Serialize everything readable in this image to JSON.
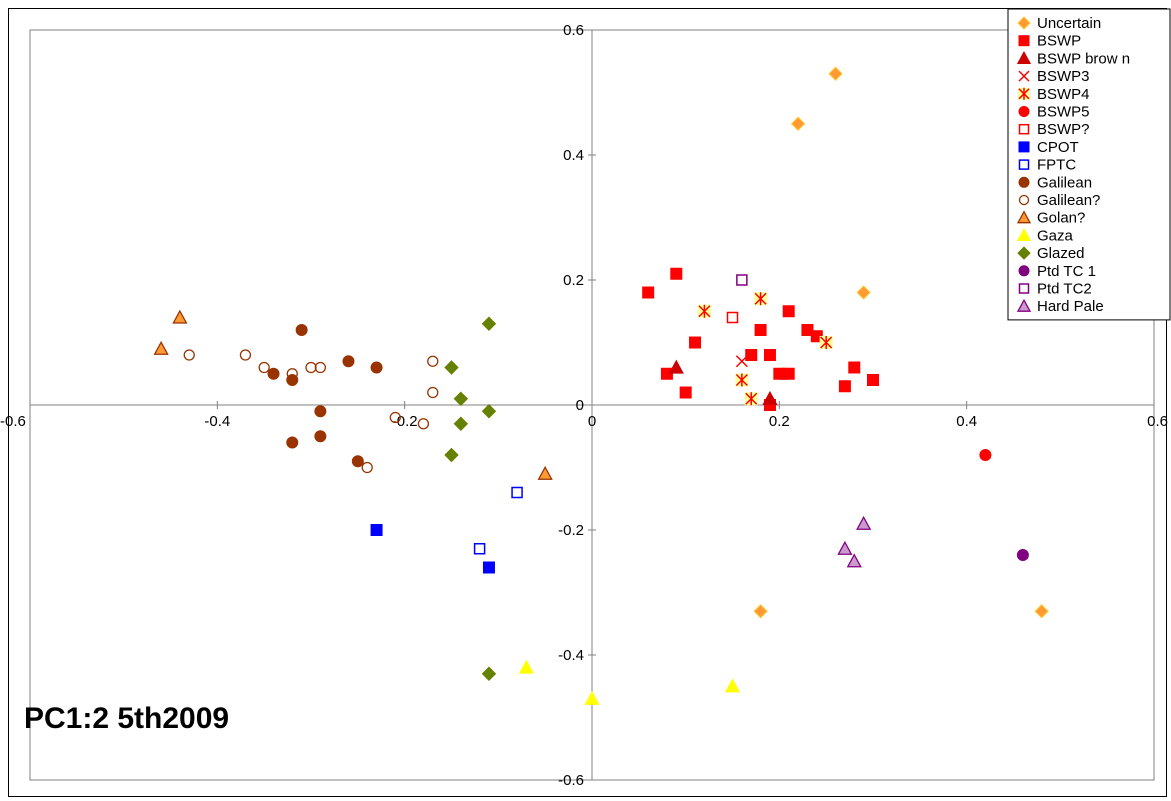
{
  "chart_data": {
    "type": "scatter",
    "title": "PC1:2 5th2009",
    "xlabel": "",
    "ylabel": "",
    "xlim": [
      -0.6,
      0.6
    ],
    "ylim": [
      -0.6,
      0.6
    ],
    "x_ticks": [
      "-0.6",
      "-0.4",
      "-0.2",
      "0",
      "0.2",
      "0.4",
      "0.6"
    ],
    "y_ticks": [
      "0.6",
      "0.4",
      "0.2",
      "0",
      "-0.2",
      "-0.4",
      "-0.6"
    ],
    "grid": false,
    "legend_position": "top-right",
    "series": [
      {
        "name": "Uncertain",
        "marker": "diamond",
        "fill": "#ff9933",
        "stroke": "#ffcc33",
        "points": [
          [
            0.26,
            0.53
          ],
          [
            0.22,
            0.45
          ],
          [
            0.29,
            0.18
          ],
          [
            0.18,
            -0.33
          ],
          [
            0.48,
            -0.33
          ]
        ]
      },
      {
        "name": "BSWP",
        "marker": "square",
        "fill": "#ff0000",
        "stroke": "#ff0000",
        "points": [
          [
            0.06,
            0.18
          ],
          [
            0.09,
            0.21
          ],
          [
            0.08,
            0.05
          ],
          [
            0.1,
            0.02
          ],
          [
            0.11,
            0.1
          ],
          [
            0.17,
            0.08
          ],
          [
            0.18,
            0.12
          ],
          [
            0.19,
            0.08
          ],
          [
            0.19,
            0.0
          ],
          [
            0.2,
            0.05
          ],
          [
            0.21,
            0.05
          ],
          [
            0.21,
            0.15
          ],
          [
            0.23,
            0.12
          ],
          [
            0.24,
            0.11
          ],
          [
            0.27,
            0.03
          ],
          [
            0.28,
            0.06
          ],
          [
            0.3,
            0.04
          ]
        ]
      },
      {
        "name": "BSWP brow n",
        "marker": "triangle",
        "fill": "#cc0000",
        "stroke": "#cc0000",
        "points": [
          [
            0.09,
            0.06
          ],
          [
            0.19,
            0.01
          ]
        ]
      },
      {
        "name": "BSWP3",
        "marker": "x",
        "fill": "#ff0000",
        "stroke": "#ff0000",
        "points": [
          [
            0.16,
            0.07
          ]
        ]
      },
      {
        "name": "BSWP4",
        "marker": "star",
        "fill": "#ffff99",
        "stroke": "#ff0000",
        "points": [
          [
            0.12,
            0.15
          ],
          [
            0.18,
            0.17
          ],
          [
            0.25,
            0.1
          ],
          [
            0.16,
            0.04
          ],
          [
            0.17,
            0.01
          ]
        ]
      },
      {
        "name": "BSWP5",
        "marker": "circle",
        "fill": "#ff0000",
        "stroke": "#ff0000",
        "points": [
          [
            0.42,
            -0.08
          ]
        ]
      },
      {
        "name": "BSWP?",
        "marker": "square-open",
        "fill": "none",
        "stroke": "#ff0000",
        "points": [
          [
            0.15,
            0.14
          ]
        ]
      },
      {
        "name": "CPOT",
        "marker": "square",
        "fill": "#0000ff",
        "stroke": "#0000ff",
        "points": [
          [
            -0.23,
            -0.2
          ],
          [
            -0.11,
            -0.26
          ]
        ]
      },
      {
        "name": "FPTC",
        "marker": "square-open",
        "fill": "none",
        "stroke": "#0000ff",
        "points": [
          [
            -0.08,
            -0.14
          ],
          [
            -0.12,
            -0.23
          ]
        ]
      },
      {
        "name": "Galilean",
        "marker": "circle",
        "fill": "#993300",
        "stroke": "#993300",
        "points": [
          [
            -0.31,
            0.12
          ],
          [
            -0.34,
            0.05
          ],
          [
            -0.32,
            0.04
          ],
          [
            -0.26,
            0.07
          ],
          [
            -0.23,
            0.06
          ],
          [
            -0.29,
            -0.01
          ],
          [
            -0.32,
            -0.06
          ],
          [
            -0.29,
            -0.05
          ],
          [
            -0.25,
            -0.09
          ]
        ]
      },
      {
        "name": "Galilean?",
        "marker": "circle-open",
        "fill": "none",
        "stroke": "#993300",
        "points": [
          [
            -0.43,
            0.08
          ],
          [
            -0.37,
            0.08
          ],
          [
            -0.35,
            0.06
          ],
          [
            -0.32,
            0.05
          ],
          [
            -0.3,
            0.06
          ],
          [
            -0.29,
            0.06
          ],
          [
            -0.17,
            0.07
          ],
          [
            -0.17,
            0.02
          ],
          [
            -0.21,
            -0.02
          ],
          [
            -0.18,
            -0.03
          ],
          [
            -0.24,
            -0.1
          ]
        ]
      },
      {
        "name": "Golan?",
        "marker": "triangle",
        "fill": "#ff9933",
        "stroke": "#993300",
        "points": [
          [
            -0.44,
            0.14
          ],
          [
            -0.46,
            0.09
          ],
          [
            -0.05,
            -0.11
          ]
        ]
      },
      {
        "name": "Gaza",
        "marker": "triangle",
        "fill": "#ffff00",
        "stroke": "#ffff00",
        "points": [
          [
            -0.07,
            -0.42
          ],
          [
            0.0,
            -0.47
          ],
          [
            0.15,
            -0.45
          ]
        ]
      },
      {
        "name": "Glazed",
        "marker": "diamond",
        "fill": "#668000",
        "stroke": "#668000",
        "points": [
          [
            -0.11,
            0.13
          ],
          [
            -0.15,
            0.06
          ],
          [
            -0.14,
            0.01
          ],
          [
            -0.11,
            -0.01
          ],
          [
            -0.14,
            -0.03
          ],
          [
            -0.15,
            -0.08
          ],
          [
            -0.11,
            -0.43
          ]
        ]
      },
      {
        "name": "Ptd TC 1",
        "marker": "circle",
        "fill": "#800080",
        "stroke": "#800080",
        "points": [
          [
            0.46,
            -0.24
          ]
        ]
      },
      {
        "name": "Ptd TC2",
        "marker": "square-open",
        "fill": "none",
        "stroke": "#800080",
        "points": [
          [
            0.16,
            0.2
          ]
        ]
      },
      {
        "name": "Hard Pale",
        "marker": "triangle",
        "fill": "#cc99cc",
        "stroke": "#800080",
        "points": [
          [
            0.29,
            -0.19
          ],
          [
            0.27,
            -0.23
          ],
          [
            0.28,
            -0.25
          ]
        ]
      }
    ]
  }
}
